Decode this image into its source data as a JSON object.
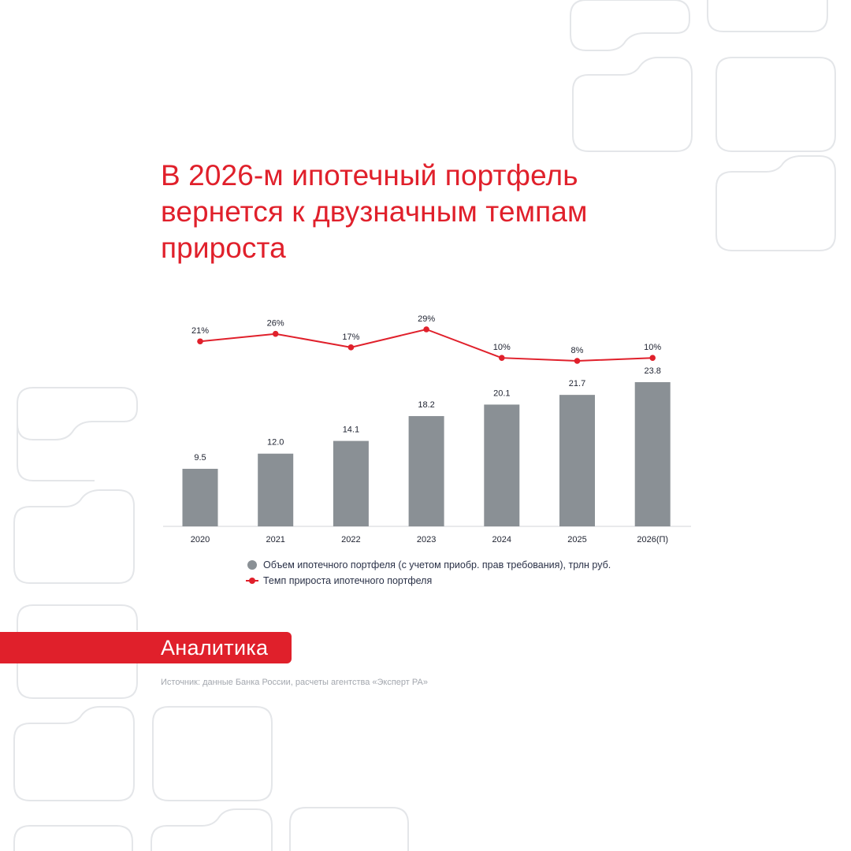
{
  "title": {
    "line1": "В 2026-м ипотечный портфель",
    "line2": "вернется к двузначным темпам",
    "line3": "прироста"
  },
  "colors": {
    "accent": "#e0202b",
    "bar": "#8a9095",
    "text": "#1e2230",
    "decor": "#e4e6e9"
  },
  "chart_data": {
    "type": "bar",
    "categories": [
      "2020",
      "2021",
      "2022",
      "2023",
      "2024",
      "2025",
      "2026(П)"
    ],
    "series": [
      {
        "name": "Объем ипотечного портфеля (с учетом приобр. прав требования), трлн руб.",
        "type": "bar",
        "values": [
          9.5,
          12.0,
          14.1,
          18.2,
          20.1,
          21.7,
          23.8
        ],
        "labels": [
          "9.5",
          "12.0",
          "14.1",
          "18.2",
          "20.1",
          "21.7",
          "23.8"
        ]
      },
      {
        "name": "Темп прироста ипотечного портфеля",
        "type": "line",
        "values": [
          21,
          26,
          17,
          29,
          10,
          8,
          10
        ],
        "labels": [
          "21%",
          "26%",
          "17%",
          "29%",
          "10%",
          "8%",
          "10%"
        ]
      }
    ],
    "ylim_bar": [
      0,
      23.8
    ],
    "ylim_line": [
      8,
      29
    ],
    "legend_position": "bottom"
  },
  "badge": {
    "label": "Аналитика"
  },
  "source": {
    "text": "Источник: данные Банка России, расчеты агентства «Эксперт РА»"
  }
}
